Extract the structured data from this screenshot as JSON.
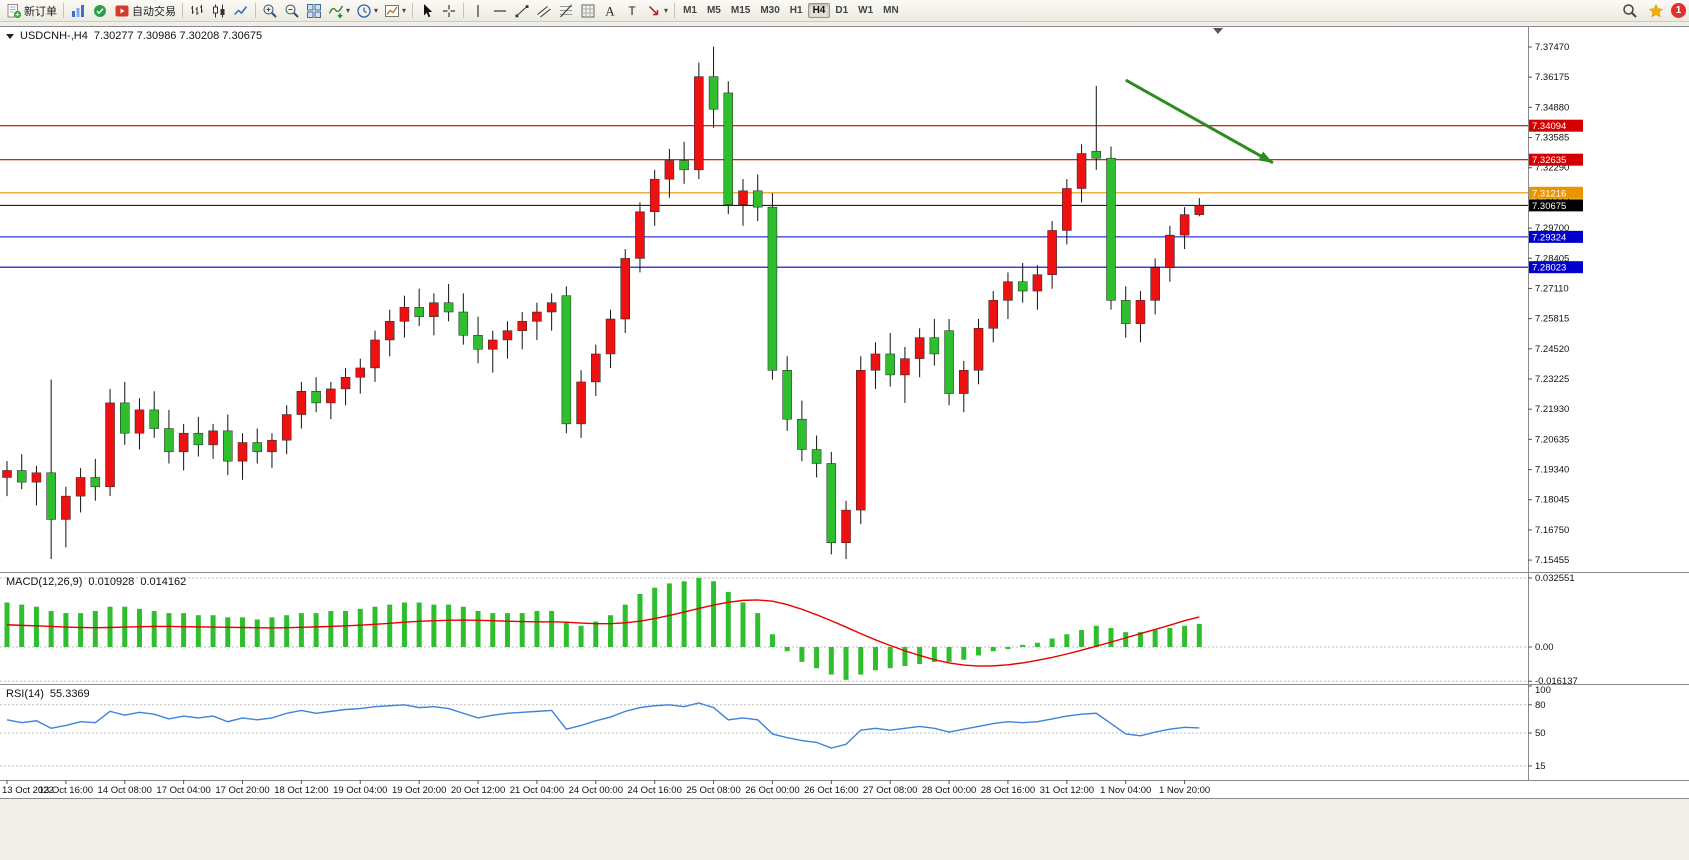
{
  "toolbar": {
    "groups": [
      [
        {
          "name": "new-order-button",
          "icon": "new-order",
          "label": "新订单"
        }
      ],
      [
        {
          "name": "charts-button",
          "icon": "charts"
        },
        {
          "name": "market-watch-button",
          "icon": "market-watch"
        },
        {
          "name": "autotrading-button",
          "icon": "autotrading",
          "label": "自动交易"
        }
      ],
      [
        {
          "name": "bar-chart-button",
          "icon": "bars"
        },
        {
          "name": "candlestick-chart-button",
          "icon": "candles"
        },
        {
          "name": "line-chart-button",
          "icon": "line"
        }
      ],
      [
        {
          "name": "zoom-in-button",
          "icon": "zoom-in"
        },
        {
          "name": "zoom-out-button",
          "icon": "zoom-out"
        },
        {
          "name": "tile-windows-button",
          "icon": "tile"
        },
        {
          "name": "indicators-button",
          "icon": "indicators",
          "caret": true
        },
        {
          "name": "periods-button",
          "icon": "clock",
          "caret": true
        },
        {
          "name": "templates-button",
          "icon": "template",
          "caret": true
        }
      ],
      [
        {
          "name": "cursor-button",
          "icon": "cursor"
        },
        {
          "name": "crosshair-button",
          "icon": "crosshair"
        }
      ],
      [
        {
          "name": "vertical-line-button",
          "icon": "vline"
        },
        {
          "name": "horizontal-line-button",
          "icon": "hline"
        },
        {
          "name": "trendline-button",
          "icon": "trendline"
        },
        {
          "name": "equidistant-channel-button",
          "icon": "channel"
        },
        {
          "name": "fibonacci-button",
          "icon": "fibo"
        },
        {
          "name": "shapes-button",
          "icon": "grid"
        },
        {
          "name": "text-button",
          "icon": "text"
        },
        {
          "name": "text-label-button",
          "icon": "label"
        },
        {
          "name": "arrows-button",
          "icon": "arrow",
          "caret": true
        }
      ]
    ],
    "timeframes": [
      "M1",
      "M5",
      "M15",
      "M30",
      "H1",
      "H4",
      "D1",
      "W1",
      "MN"
    ],
    "active_timeframe": "H4",
    "notification_count": "1"
  },
  "chart_data": {
    "type": "candlestick",
    "title_symbol": "USDCNH-,H4",
    "title_ohlc": "7.30277 7.30986 7.30208 7.30675",
    "symbol": "USDCNH-",
    "timeframe": "H4",
    "current": {
      "open": 7.30277,
      "high": 7.30986,
      "low": 7.30208,
      "close": 7.30675
    },
    "colors": {
      "up": "#ee1111",
      "down": "#2ebe2e",
      "wick": "#111111",
      "macd_hist": "#2ebe2e",
      "macd_signal": "#e80000",
      "rsi": "#3b84d9",
      "arrow": "#2e8b22"
    },
    "price_axis": {
      "min": 7.1503,
      "max": 7.382,
      "ticks": [
        "7.37470",
        "7.36175",
        "7.34880",
        "7.33585",
        "7.32290",
        "7.30995",
        "7.29700",
        "7.28405",
        "7.27110",
        "7.25815",
        "7.24520",
        "7.23225",
        "7.21930",
        "7.20635",
        "7.19340",
        "7.18045",
        "7.16750",
        "7.15455"
      ]
    },
    "hlines": [
      {
        "price": 7.34094,
        "label": "7.34094",
        "color": "#d40000",
        "name": "resistance-line-1"
      },
      {
        "price": 7.32635,
        "label": "7.32635",
        "color": "#d40000",
        "name": "resistance-line-2"
      },
      {
        "price": 7.31216,
        "label": "7.31216",
        "color": "#e89500",
        "name": "pivot-line"
      },
      {
        "price": 7.30675,
        "label": "7.30675",
        "color": "#000000",
        "name": "current-price-line"
      },
      {
        "price": 7.29324,
        "label": "7.29324",
        "color": "#0000cc",
        "name": "support-line-1"
      },
      {
        "price": 7.28023,
        "label": "7.28023",
        "color": "#0000cc",
        "name": "support-line-2"
      }
    ],
    "arrow": {
      "from": {
        "index": 76.0,
        "price": 7.3605
      },
      "to": {
        "index": 86.0,
        "price": 7.325
      }
    },
    "time_labels": [
      "13 Oct 2022",
      "13 Oct 16:00",
      "14 Oct 08:00",
      "17 Oct 04:00",
      "17 Oct 20:00",
      "18 Oct 12:00",
      "19 Oct 04:00",
      "19 Oct 20:00",
      "20 Oct 12:00",
      "21 Oct 04:00",
      "24 Oct 00:00",
      "24 Oct 16:00",
      "25 Oct 08:00",
      "26 Oct 00:00",
      "26 Oct 16:00",
      "27 Oct 08:00",
      "28 Oct 00:00",
      "28 Oct 16:00",
      "31 Oct 12:00",
      "1 Nov 04:00",
      "1 Nov 20:00"
    ],
    "label_step": 4,
    "candles": [
      [
        7.19,
        7.197,
        7.182,
        7.193
      ],
      [
        7.193,
        7.2,
        7.185,
        7.188
      ],
      [
        7.188,
        7.195,
        7.178,
        7.192
      ],
      [
        7.192,
        7.232,
        7.155,
        7.172
      ],
      [
        7.172,
        7.186,
        7.16,
        7.182
      ],
      [
        7.182,
        7.194,
        7.175,
        7.19
      ],
      [
        7.19,
        7.198,
        7.18,
        7.186
      ],
      [
        7.186,
        7.228,
        7.182,
        7.222
      ],
      [
        7.222,
        7.231,
        7.204,
        7.209
      ],
      [
        7.209,
        7.224,
        7.202,
        7.219
      ],
      [
        7.219,
        7.227,
        7.207,
        7.211
      ],
      [
        7.211,
        7.219,
        7.196,
        7.201
      ],
      [
        7.201,
        7.213,
        7.193,
        7.209
      ],
      [
        7.209,
        7.216,
        7.199,
        7.204
      ],
      [
        7.204,
        7.213,
        7.198,
        7.21
      ],
      [
        7.21,
        7.217,
        7.191,
        7.197
      ],
      [
        7.197,
        7.209,
        7.189,
        7.205
      ],
      [
        7.205,
        7.211,
        7.196,
        7.201
      ],
      [
        7.201,
        7.209,
        7.194,
        7.206
      ],
      [
        7.206,
        7.221,
        7.2,
        7.217
      ],
      [
        7.217,
        7.231,
        7.211,
        7.227
      ],
      [
        7.227,
        7.233,
        7.218,
        7.222
      ],
      [
        7.222,
        7.231,
        7.215,
        7.228
      ],
      [
        7.228,
        7.237,
        7.221,
        7.233
      ],
      [
        7.233,
        7.241,
        7.226,
        7.237
      ],
      [
        7.237,
        7.253,
        7.231,
        7.249
      ],
      [
        7.249,
        7.262,
        7.242,
        7.257
      ],
      [
        7.257,
        7.268,
        7.25,
        7.263
      ],
      [
        7.263,
        7.271,
        7.255,
        7.259
      ],
      [
        7.259,
        7.269,
        7.251,
        7.265
      ],
      [
        7.265,
        7.273,
        7.257,
        7.261
      ],
      [
        7.261,
        7.269,
        7.247,
        7.251
      ],
      [
        7.251,
        7.259,
        7.239,
        7.245
      ],
      [
        7.245,
        7.253,
        7.235,
        7.249
      ],
      [
        7.249,
        7.257,
        7.241,
        7.253
      ],
      [
        7.253,
        7.261,
        7.245,
        7.257
      ],
      [
        7.257,
        7.265,
        7.249,
        7.261
      ],
      [
        7.261,
        7.269,
        7.253,
        7.265
      ],
      [
        7.268,
        7.272,
        7.209,
        7.213
      ],
      [
        7.213,
        7.236,
        7.207,
        7.231
      ],
      [
        7.231,
        7.247,
        7.225,
        7.243
      ],
      [
        7.243,
        7.262,
        7.237,
        7.258
      ],
      [
        7.258,
        7.288,
        7.252,
        7.284
      ],
      [
        7.284,
        7.308,
        7.278,
        7.304
      ],
      [
        7.304,
        7.322,
        7.298,
        7.318
      ],
      [
        7.318,
        7.331,
        7.31,
        7.326
      ],
      [
        7.326,
        7.334,
        7.316,
        7.322
      ],
      [
        7.322,
        7.368,
        7.318,
        7.362
      ],
      [
        7.362,
        7.3749,
        7.34,
        7.348
      ],
      [
        7.355,
        7.36,
        7.303,
        7.307
      ],
      [
        7.307,
        7.318,
        7.298,
        7.313
      ],
      [
        7.313,
        7.32,
        7.3,
        7.306
      ],
      [
        7.306,
        7.312,
        7.232,
        7.236
      ],
      [
        7.236,
        7.242,
        7.21,
        7.215
      ],
      [
        7.215,
        7.223,
        7.197,
        7.202
      ],
      [
        7.202,
        7.208,
        7.19,
        7.196
      ],
      [
        7.196,
        7.201,
        7.157,
        7.162
      ],
      [
        7.162,
        7.18,
        7.155,
        7.176
      ],
      [
        7.176,
        7.242,
        7.17,
        7.236
      ],
      [
        7.236,
        7.248,
        7.228,
        7.243
      ],
      [
        7.243,
        7.252,
        7.229,
        7.234
      ],
      [
        7.234,
        7.246,
        7.222,
        7.241
      ],
      [
        7.241,
        7.254,
        7.233,
        7.25
      ],
      [
        7.25,
        7.258,
        7.238,
        7.243
      ],
      [
        7.253,
        7.258,
        7.221,
        7.226
      ],
      [
        7.226,
        7.24,
        7.218,
        7.236
      ],
      [
        7.236,
        7.258,
        7.23,
        7.254
      ],
      [
        7.254,
        7.27,
        7.248,
        7.266
      ],
      [
        7.266,
        7.278,
        7.258,
        7.274
      ],
      [
        7.274,
        7.282,
        7.265,
        7.27
      ],
      [
        7.27,
        7.281,
        7.262,
        7.277
      ],
      [
        7.277,
        7.3,
        7.271,
        7.296
      ],
      [
        7.296,
        7.318,
        7.29,
        7.314
      ],
      [
        7.314,
        7.333,
        7.308,
        7.329
      ],
      [
        7.33,
        7.358,
        7.322,
        7.327
      ],
      [
        7.327,
        7.332,
        7.262,
        7.266
      ],
      [
        7.266,
        7.272,
        7.25,
        7.256
      ],
      [
        7.256,
        7.27,
        7.248,
        7.266
      ],
      [
        7.266,
        7.284,
        7.26,
        7.28
      ],
      [
        7.28,
        7.298,
        7.274,
        7.294
      ],
      [
        7.294,
        7.306,
        7.288,
        7.3028
      ],
      [
        7.30277,
        7.30986,
        7.30208,
        7.30675
      ]
    ],
    "macd": {
      "label": "MACD(12,26,9)",
      "value_main": "0.010928",
      "value_signal": "0.014162",
      "axis": {
        "min": -0.01651,
        "max": 0.03444,
        "ticks": [
          {
            "v": 0.032551,
            "label": "0.032551"
          },
          {
            "v": 0,
            "label": "0.00"
          },
          {
            "v": -0.016137,
            "label": "-0.016137"
          }
        ]
      },
      "histogram": [
        0.021,
        0.02,
        0.019,
        0.017,
        0.016,
        0.016,
        0.017,
        0.019,
        0.019,
        0.018,
        0.017,
        0.016,
        0.016,
        0.015,
        0.015,
        0.014,
        0.014,
        0.013,
        0.014,
        0.015,
        0.016,
        0.016,
        0.017,
        0.017,
        0.018,
        0.019,
        0.02,
        0.021,
        0.021,
        0.02,
        0.02,
        0.019,
        0.017,
        0.016,
        0.016,
        0.016,
        0.017,
        0.017,
        0.012,
        0.01,
        0.012,
        0.015,
        0.02,
        0.025,
        0.028,
        0.03,
        0.031,
        0.0326,
        0.031,
        0.026,
        0.021,
        0.016,
        0.006,
        -0.002,
        -0.007,
        -0.01,
        -0.013,
        -0.0155,
        -0.013,
        -0.011,
        -0.01,
        -0.009,
        -0.008,
        -0.007,
        -0.007,
        -0.006,
        -0.004,
        -0.002,
        -0.001,
        0.001,
        0.002,
        0.004,
        0.006,
        0.008,
        0.01,
        0.009,
        0.007,
        0.007,
        0.008,
        0.009,
        0.01,
        0.0109
      ],
      "signal": [
        0.0105,
        0.0102,
        0.01,
        0.0097,
        0.0094,
        0.0092,
        0.0091,
        0.0092,
        0.0094,
        0.0096,
        0.0097,
        0.0097,
        0.0096,
        0.0095,
        0.0094,
        0.0093,
        0.0092,
        0.0091,
        0.009,
        0.0091,
        0.0093,
        0.0095,
        0.0097,
        0.01,
        0.0103,
        0.0107,
        0.0112,
        0.0117,
        0.0121,
        0.0124,
        0.0126,
        0.0127,
        0.0126,
        0.0124,
        0.0122,
        0.012,
        0.0119,
        0.0119,
        0.0117,
        0.0113,
        0.011,
        0.011,
        0.0114,
        0.0122,
        0.0134,
        0.0149,
        0.0165,
        0.0182,
        0.0198,
        0.0211,
        0.022,
        0.0222,
        0.0216,
        0.02,
        0.0178,
        0.0152,
        0.0124,
        0.0094,
        0.0063,
        0.0034,
        0.0007,
        -0.0018,
        -0.004,
        -0.006,
        -0.0075,
        -0.0085,
        -0.009,
        -0.0089,
        -0.0084,
        -0.0075,
        -0.0063,
        -0.0049,
        -0.0033,
        -0.0015,
        0.0004,
        0.0023,
        0.0043,
        0.0063,
        0.0083,
        0.0103,
        0.0124,
        0.0142
      ]
    },
    "rsi": {
      "label": "RSI(14)",
      "value": "55.3369",
      "axis": {
        "min": 0,
        "max": 100,
        "ticks": [
          {
            "v": 100,
            "label": "100"
          },
          {
            "v": 80,
            "label": "80"
          },
          {
            "v": 50,
            "label": "50"
          },
          {
            "v": 15,
            "label": "15"
          }
        ]
      },
      "levels": [
        80,
        50,
        15
      ],
      "values": [
        64,
        61,
        63,
        55,
        58,
        62,
        61,
        73,
        69,
        72,
        70,
        65,
        68,
        66,
        68,
        62,
        66,
        64,
        66,
        71,
        74,
        71,
        73,
        75,
        76,
        78,
        79,
        80,
        77,
        78,
        76,
        71,
        66,
        69,
        71,
        72,
        73,
        74,
        54,
        58,
        63,
        67,
        73,
        77,
        79,
        80,
        78,
        82,
        77,
        64,
        66,
        64,
        49,
        45,
        42,
        40,
        34,
        38,
        53,
        55,
        53,
        55,
        57,
        55,
        51,
        54,
        57,
        60,
        62,
        61,
        62,
        65,
        68,
        70,
        71,
        60,
        49,
        47,
        51,
        54,
        56,
        55.34
      ]
    }
  }
}
